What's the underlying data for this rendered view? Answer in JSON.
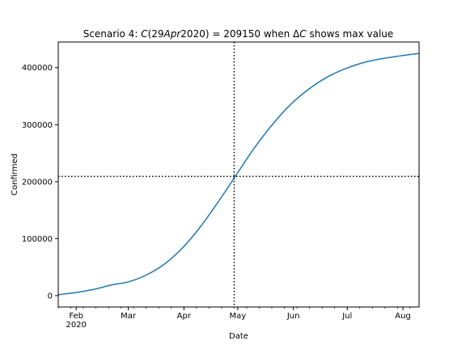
{
  "chart_data": {
    "type": "line",
    "title": {
      "pre": "Scenario 4: ",
      "c1": "C",
      "open": "(29",
      "apr": "Apr",
      "close": "2020) = 209150 when Δ",
      "c2": "C",
      "post": " shows max value"
    },
    "xlabel": "Date",
    "ylabel": "Confirmed",
    "x_range": [
      "2020-01-22",
      "2020-08-10"
    ],
    "ylim": [
      -20000,
      445000
    ],
    "x_ticks": [
      {
        "date": "2020-02-01",
        "label": "Feb",
        "sublabel": "2020"
      },
      {
        "date": "2020-03-01",
        "label": "Mar",
        "sublabel": ""
      },
      {
        "date": "2020-04-01",
        "label": "Apr",
        "sublabel": ""
      },
      {
        "date": "2020-05-01",
        "label": "May",
        "sublabel": ""
      },
      {
        "date": "2020-06-01",
        "label": "Jun",
        "sublabel": ""
      },
      {
        "date": "2020-07-01",
        "label": "Jul",
        "sublabel": ""
      },
      {
        "date": "2020-08-01",
        "label": "Aug",
        "sublabel": ""
      }
    ],
    "y_ticks": [
      {
        "value": 0,
        "label": "0"
      },
      {
        "value": 100000,
        "label": "100000"
      },
      {
        "value": 200000,
        "label": "200000"
      },
      {
        "value": 300000,
        "label": "300000"
      },
      {
        "value": 400000,
        "label": "400000"
      }
    ],
    "series": [
      {
        "color": "#1f77b4",
        "x": [
          "2020-01-22",
          "2020-02-01",
          "2020-02-11",
          "2020-02-21",
          "2020-03-01",
          "2020-03-11",
          "2020-03-21",
          "2020-03-31",
          "2020-04-10",
          "2020-04-20",
          "2020-04-30",
          "2020-05-10",
          "2020-05-20",
          "2020-05-30",
          "2020-06-09",
          "2020-06-19",
          "2020-06-29",
          "2020-07-09",
          "2020-07-19",
          "2020-07-29",
          "2020-08-10"
        ],
        "y": [
          1500,
          5500,
          11000,
          19000,
          24000,
          36000,
          55000,
          83000,
          120000,
          164000,
          211000,
          258000,
          299000,
          334000,
          361000,
          382000,
          397000,
          408000,
          415000,
          420000,
          425000
        ]
      }
    ],
    "reference_lines": {
      "vertical_date": "2020-04-29",
      "horizontal_value": 209150,
      "style": "dotted",
      "color": "#000000"
    },
    "grid": false,
    "legend": "none"
  }
}
